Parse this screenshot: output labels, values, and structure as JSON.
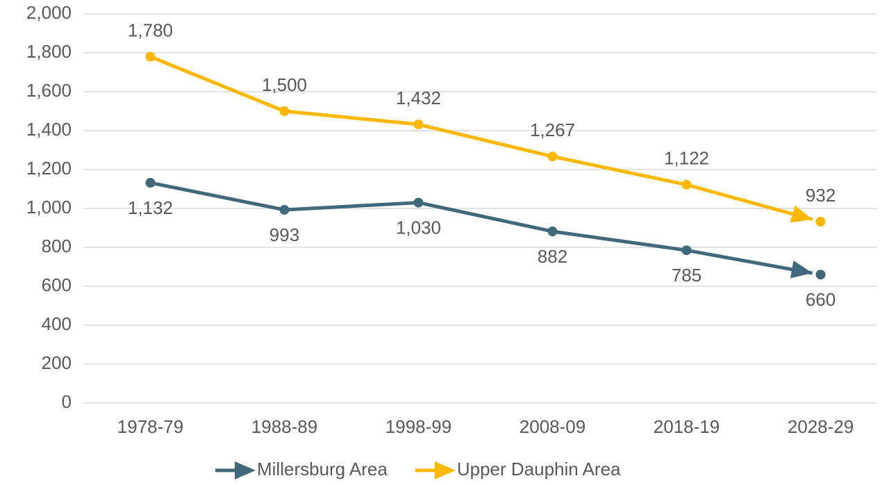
{
  "chart_data": {
    "type": "line",
    "categories": [
      "1978-79",
      "1988-89",
      "1998-99",
      "2008-09",
      "2018-19",
      "2028-29"
    ],
    "series": [
      {
        "name": "Millersburg Area",
        "color": "#41697c",
        "values": [
          1132,
          993,
          1030,
          882,
          785,
          660
        ],
        "value_labels": [
          "1,132",
          "993",
          "1,030",
          "882",
          "785",
          "660"
        ]
      },
      {
        "name": "Upper Dauphin Area",
        "color": "#ffb800",
        "values": [
          1780,
          1500,
          1432,
          1267,
          1122,
          932
        ],
        "value_labels": [
          "1,780",
          "1,500",
          "1,432",
          "1,267",
          "1,122",
          "932"
        ]
      }
    ],
    "ylim": [
      0,
      2000
    ],
    "yticks": [
      0,
      200,
      400,
      600,
      800,
      {
        "value": 1000,
        "label": "1,000"
      },
      {
        "value": 1200,
        "label": "1,200"
      },
      {
        "value": 1400,
        "label": "1,400"
      },
      {
        "value": 1600,
        "label": "1,600"
      },
      {
        "value": 1800,
        "label": "1,800"
      },
      {
        "value": 2000,
        "label": "2,000"
      }
    ],
    "grid": true,
    "legend": "bottom"
  }
}
